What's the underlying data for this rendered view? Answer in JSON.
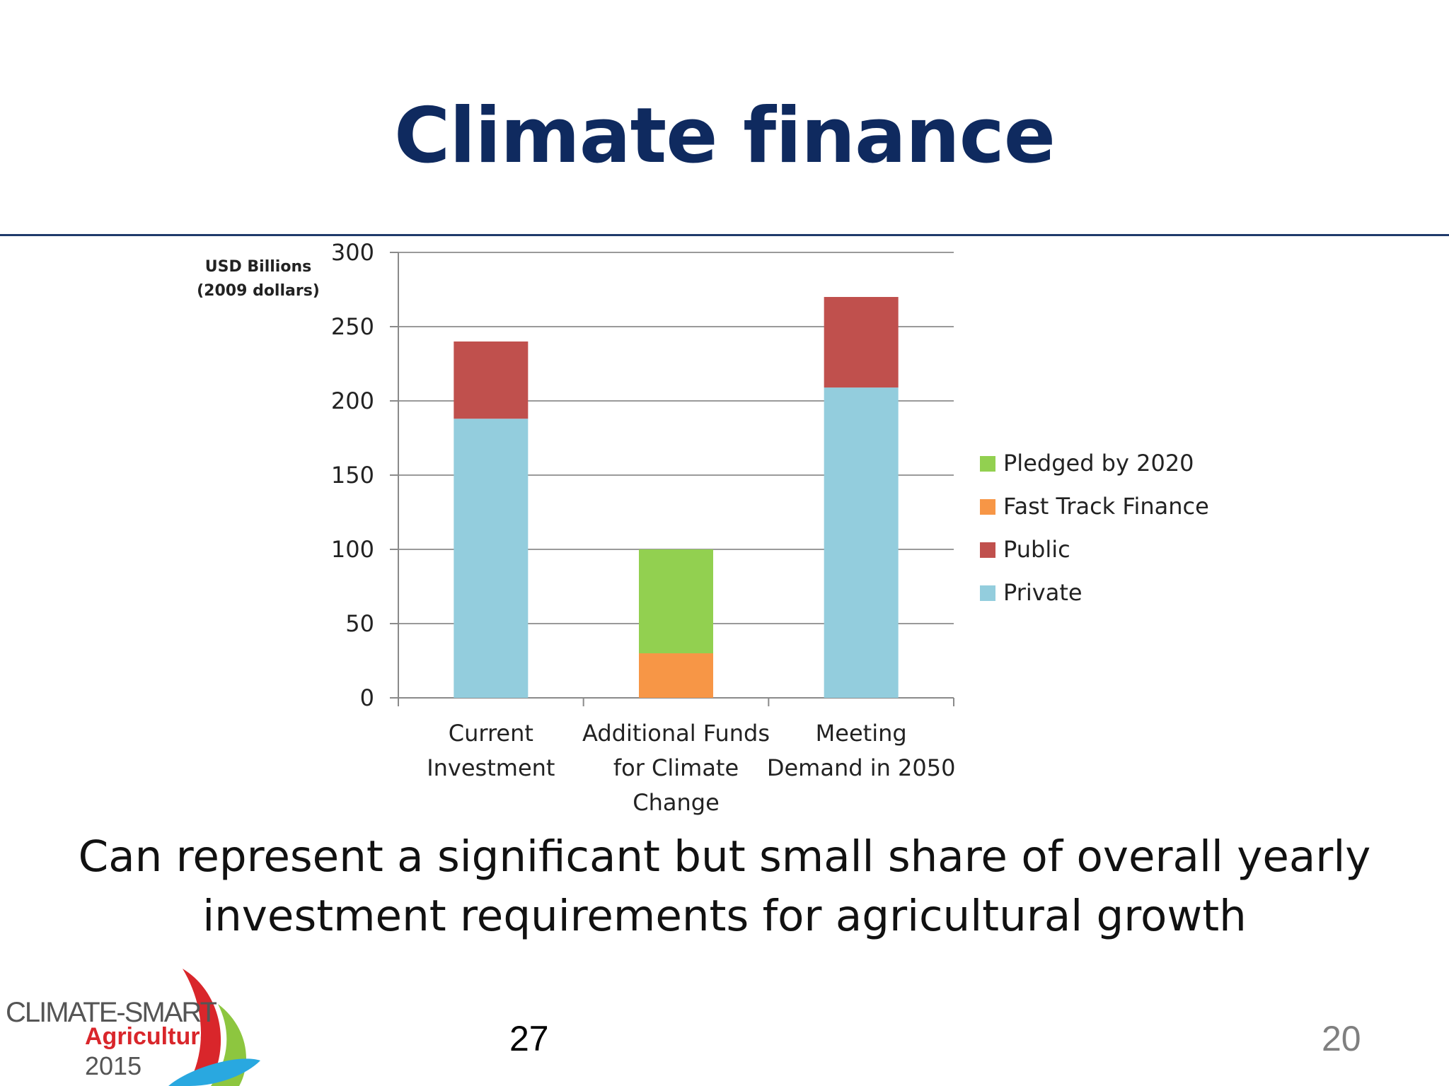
{
  "slide": {
    "title": "Climate finance",
    "caption_lines": [
      "Can represent a significant but small share of overall yearly",
      "investment requirements for agricultural growth"
    ],
    "footer_number": "27",
    "slide_number": "20"
  },
  "logo": {
    "line1": "CLIMATE-SMART",
    "line2": "Agriculture",
    "line3": "2015"
  },
  "chart_data": {
    "type": "bar",
    "stacked": true,
    "title": "",
    "ylabel_lines": [
      "USD Billions",
      "(2009 dollars)"
    ],
    "ylim": [
      0,
      300
    ],
    "yticks": [
      0,
      50,
      100,
      150,
      200,
      250,
      300
    ],
    "grid": true,
    "legend_position": "right",
    "categories": [
      [
        "Current",
        "Investment"
      ],
      [
        "Additional Funds",
        "for Climate",
        "Change"
      ],
      [
        "Meeting",
        "Demand in 2050"
      ]
    ],
    "series": [
      {
        "name": "Private",
        "color": "#93cddd",
        "values": [
          188,
          0,
          209
        ]
      },
      {
        "name": "Public",
        "color": "#c0504d",
        "values": [
          52,
          0,
          61
        ]
      },
      {
        "name": "Fast Track Finance",
        "color": "#f79646",
        "values": [
          0,
          30,
          0
        ]
      },
      {
        "name": "Pledged by 2020",
        "color": "#92d050",
        "values": [
          0,
          70,
          0
        ]
      }
    ],
    "legend_order": [
      "Pledged by 2020",
      "Fast Track Finance",
      "Public",
      "Private"
    ]
  }
}
